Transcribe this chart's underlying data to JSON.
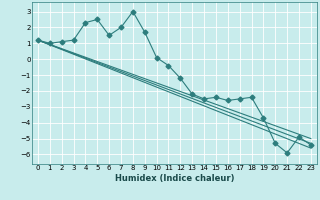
{
  "xlabel": "Humidex (Indice chaleur)",
  "ylabel": "",
  "background_color": "#c8ecec",
  "grid_color": "#ffffff",
  "line_color": "#2d7d7d",
  "xlim": [
    -0.5,
    23.5
  ],
  "ylim": [
    -6.6,
    3.6
  ],
  "yticks": [
    -6,
    -5,
    -4,
    -3,
    -2,
    -1,
    0,
    1,
    2,
    3
  ],
  "xtick_labels": [
    "0",
    "1",
    "2",
    "3",
    "4",
    "5",
    "6",
    "7",
    "8",
    "9",
    "10",
    "11",
    "12",
    "13",
    "14",
    "15",
    "16",
    "17",
    "18",
    "19",
    "20",
    "21",
    "22",
    "23"
  ],
  "line1_x": [
    0,
    1,
    2,
    3,
    4,
    5,
    6,
    7,
    8,
    9,
    10,
    11,
    12,
    13,
    14,
    15,
    16,
    17,
    18,
    19,
    20,
    21,
    22,
    23
  ],
  "line1_y": [
    1.2,
    1.0,
    1.1,
    1.2,
    2.3,
    2.5,
    1.5,
    2.0,
    3.0,
    1.7,
    0.1,
    -0.4,
    -1.2,
    -2.2,
    -2.5,
    -2.4,
    -2.6,
    -2.5,
    -2.4,
    -3.7,
    -5.3,
    -5.9,
    -4.9,
    -5.4
  ],
  "line2_x": [
    0,
    23
  ],
  "line2_y": [
    1.2,
    -5.6
  ],
  "line3_x": [
    0,
    23
  ],
  "line3_y": [
    1.2,
    -5.3
  ],
  "line4_x": [
    0,
    23
  ],
  "line4_y": [
    1.2,
    -5.0
  ],
  "marker": "D",
  "marker_size": 2.5,
  "tick_fontsize": 5,
  "xlabel_fontsize": 6
}
